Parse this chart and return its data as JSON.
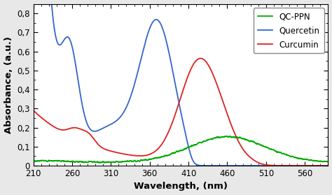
{
  "title": "",
  "xlabel": "Wavelength, (nm)",
  "ylabel": "Absorbance, (a.u.)",
  "xlim": [
    210,
    590
  ],
  "ylim": [
    0,
    0.85
  ],
  "xticks": [
    210,
    260,
    310,
    360,
    410,
    460,
    510,
    560
  ],
  "yticks": [
    0.0,
    0.1,
    0.2,
    0.3,
    0.4,
    0.5,
    0.6,
    0.7,
    0.8
  ],
  "ytick_labels": [
    "0",
    "0,1",
    "0,2",
    "0,3",
    "0,4",
    "0,5",
    "0,6",
    "0,7",
    "0,8"
  ],
  "colors": {
    "qc_ppn": "#00aa00",
    "quercetin": "#3366cc",
    "curcumin": "#dd2222"
  },
  "legend_labels": [
    "QC-PPN",
    "Quercetin",
    "Curcumin"
  ],
  "background_color": "#e8e8e8",
  "plot_bg": "#ffffff"
}
